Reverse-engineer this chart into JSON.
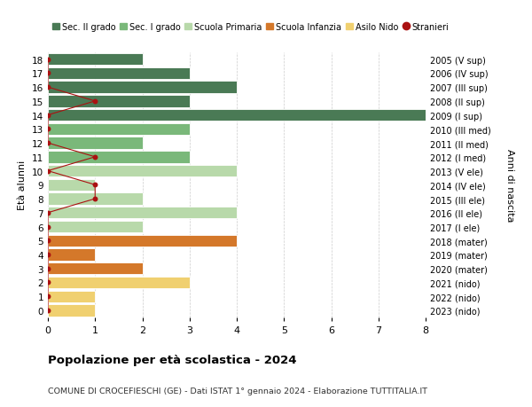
{
  "ages": [
    18,
    17,
    16,
    15,
    14,
    13,
    12,
    11,
    10,
    9,
    8,
    7,
    6,
    5,
    4,
    3,
    2,
    1,
    0
  ],
  "years": [
    "2005 (V sup)",
    "2006 (IV sup)",
    "2007 (III sup)",
    "2008 (II sup)",
    "2009 (I sup)",
    "2010 (III med)",
    "2011 (II med)",
    "2012 (I med)",
    "2013 (V ele)",
    "2014 (IV ele)",
    "2015 (III ele)",
    "2016 (II ele)",
    "2017 (I ele)",
    "2018 (mater)",
    "2019 (mater)",
    "2020 (mater)",
    "2021 (nido)",
    "2022 (nido)",
    "2023 (nido)"
  ],
  "bar_values": [
    2,
    3,
    4,
    3,
    8,
    3,
    2,
    3,
    4,
    1,
    2,
    4,
    2,
    4,
    1,
    2,
    3,
    1,
    1
  ],
  "bar_colors": [
    "#4a7a55",
    "#4a7a55",
    "#4a7a55",
    "#4a7a55",
    "#4a7a55",
    "#7ab87a",
    "#7ab87a",
    "#7ab87a",
    "#b8d9aa",
    "#b8d9aa",
    "#b8d9aa",
    "#b8d9aa",
    "#b8d9aa",
    "#d4782a",
    "#d4782a",
    "#d4782a",
    "#f0d070",
    "#f0d070",
    "#f0d070"
  ],
  "stranieri_x": [
    0,
    0,
    0,
    1,
    0,
    0,
    0,
    1,
    0,
    1,
    1,
    0,
    0,
    0,
    0,
    0,
    0,
    0,
    0
  ],
  "stranieri_ages": [
    18,
    17,
    16,
    15,
    14,
    13,
    12,
    11,
    10,
    9,
    8,
    7,
    6,
    5,
    4,
    3,
    2,
    1,
    0
  ],
  "legend_labels": [
    "Sec. II grado",
    "Sec. I grado",
    "Scuola Primaria",
    "Scuola Infanzia",
    "Asilo Nido",
    "Stranieri"
  ],
  "legend_colors": [
    "#4a7a55",
    "#7ab87a",
    "#b8d9aa",
    "#d4782a",
    "#f0d070",
    "#aa1111"
  ],
  "title_bold": "Popolazione per età scolastica - 2024",
  "subtitle": "COMUNE DI CROCEFIESCHI (GE) - Dati ISTAT 1° gennaio 2024 - Elaborazione TUTTITALIA.IT",
  "ylabel_left": "Età alunni",
  "ylabel_right": "Anni di nascita",
  "xlim": [
    0,
    8
  ],
  "xticks": [
    0,
    1,
    2,
    3,
    4,
    5,
    6,
    7,
    8
  ],
  "bg_color": "#ffffff",
  "grid_color": "#cccccc",
  "stranieri_color": "#aa1111",
  "bar_height": 0.85
}
